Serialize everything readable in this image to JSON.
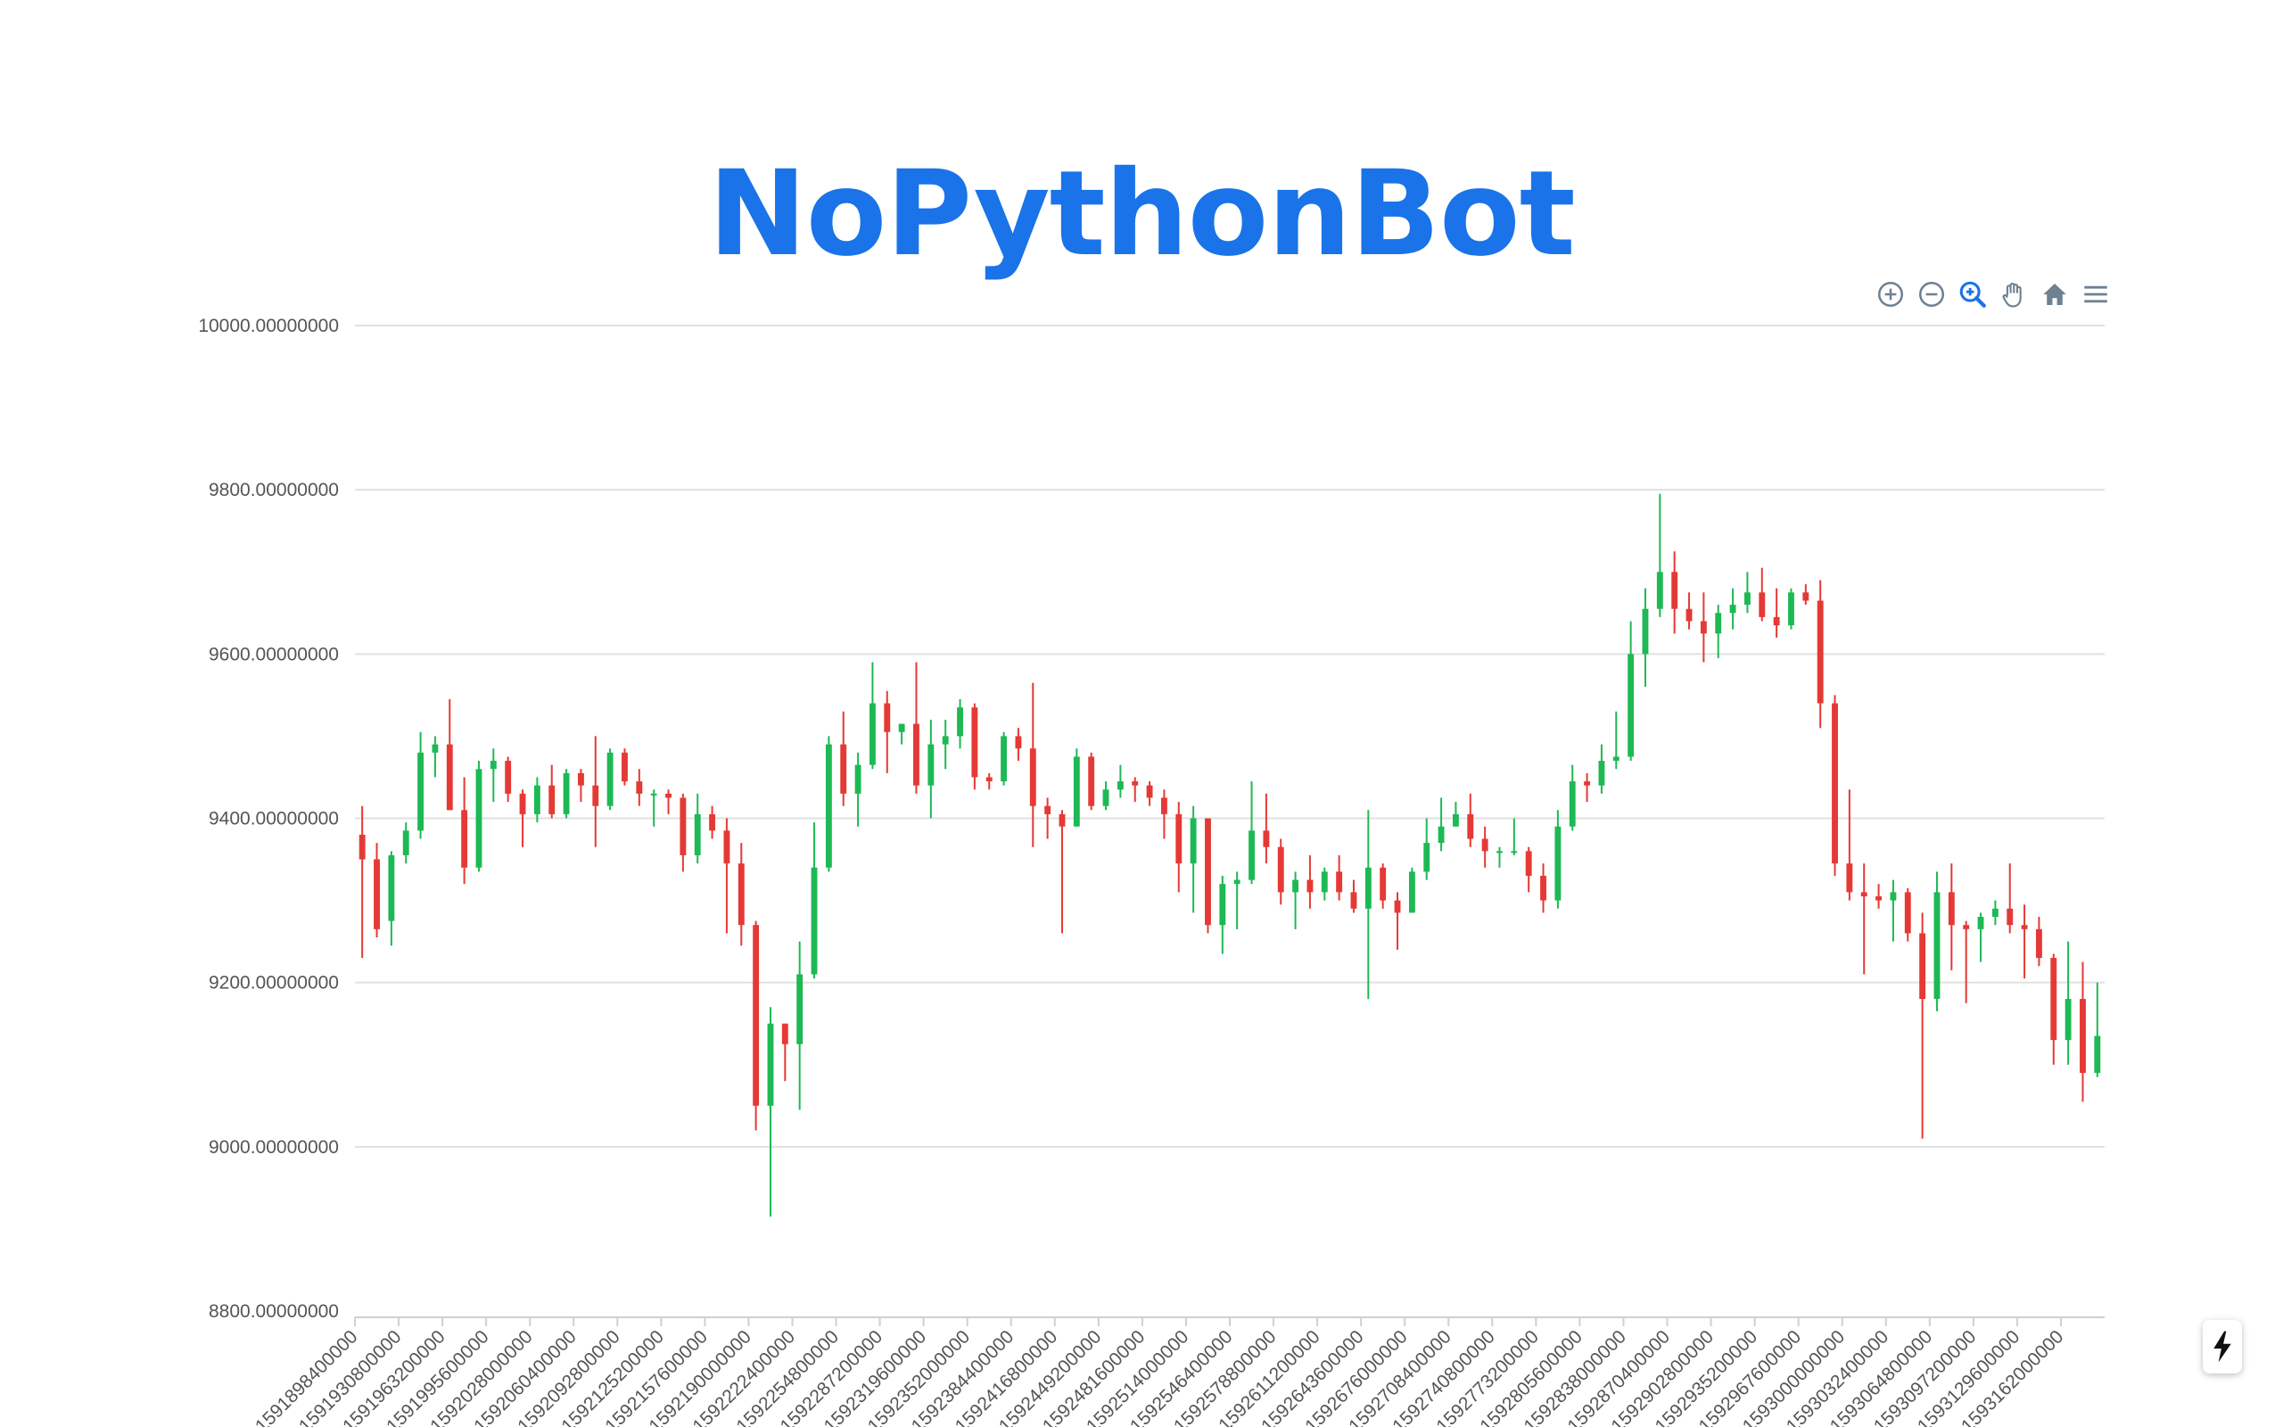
{
  "title": "NoPythonBot",
  "toolbar": {
    "icons": [
      "zoom-in-icon",
      "zoom-out-icon",
      "selection-zoom-icon",
      "pan-icon",
      "home-icon",
      "menu-icon"
    ]
  },
  "colors": {
    "up": "#1db954",
    "down": "#e53935",
    "grid": "#e0e0e0",
    "axis": "#555555",
    "accent": "#1a73e8",
    "toolbar": "#6e8192"
  },
  "chart_data": {
    "type": "candlestick",
    "title": "NoPythonBot",
    "ylim": [
      8800,
      10000
    ],
    "y_ticks": [
      "8800.00000000",
      "9000.00000000",
      "9200.00000000",
      "9400.00000000",
      "9600.00000000",
      "9800.00000000",
      "10000.00000000"
    ],
    "x_ticks": [
      "1591898400000",
      "1591930800000",
      "1591963200000",
      "1591995600000",
      "1592028000000",
      "1592060400000",
      "1592092800000",
      "1592125200000",
      "1592157600000",
      "1592190000000",
      "1592222400000",
      "1592254800000",
      "1592287200000",
      "1592319600000",
      "1592352000000",
      "1592384400000",
      "1592416800000",
      "1592449200000",
      "1592481600000",
      "1592514000000",
      "1592546400000",
      "1592578800000",
      "1592611200000",
      "1592643600000",
      "1592676000000",
      "1592708400000",
      "1592740800000",
      "1592773200000",
      "1592805600000",
      "1592838000000",
      "1592870400000",
      "1592902800000",
      "1592935200000",
      "1592967600000",
      "1593000000000",
      "1593032400000",
      "1593064800000",
      "1593097200000",
      "1593129600000",
      "1593162000000"
    ],
    "x_tick_interval_ms": 32400000,
    "candle_interval_ms": 10800000,
    "candles": [
      [
        9380,
        9415,
        9230,
        9350
      ],
      [
        9350,
        9370,
        9255,
        9265
      ],
      [
        9275,
        9360,
        9245,
        9355
      ],
      [
        9355,
        9395,
        9345,
        9385
      ],
      [
        9385,
        9505,
        9375,
        9480
      ],
      [
        9480,
        9500,
        9450,
        9490
      ],
      [
        9490,
        9545,
        9410,
        9410
      ],
      [
        9410,
        9450,
        9320,
        9340
      ],
      [
        9340,
        9470,
        9335,
        9460
      ],
      [
        9460,
        9485,
        9420,
        9470
      ],
      [
        9470,
        9475,
        9420,
        9430
      ],
      [
        9430,
        9435,
        9365,
        9405
      ],
      [
        9405,
        9450,
        9395,
        9440
      ],
      [
        9440,
        9465,
        9400,
        9405
      ],
      [
        9405,
        9460,
        9400,
        9455
      ],
      [
        9455,
        9460,
        9420,
        9440
      ],
      [
        9440,
        9500,
        9365,
        9415
      ],
      [
        9415,
        9485,
        9410,
        9480
      ],
      [
        9480,
        9485,
        9440,
        9445
      ],
      [
        9445,
        9460,
        9415,
        9430
      ],
      [
        9430,
        9435,
        9390,
        9430
      ],
      [
        9430,
        9435,
        9405,
        9425
      ],
      [
        9425,
        9430,
        9335,
        9355
      ],
      [
        9355,
        9430,
        9345,
        9405
      ],
      [
        9405,
        9415,
        9375,
        9385
      ],
      [
        9385,
        9400,
        9260,
        9345
      ],
      [
        9345,
        9370,
        9245,
        9270
      ],
      [
        9270,
        9275,
        9020,
        9050
      ],
      [
        9050,
        9170,
        8915,
        9150
      ],
      [
        9150,
        9150,
        9080,
        9125
      ],
      [
        9125,
        9250,
        9045,
        9210
      ],
      [
        9210,
        9395,
        9205,
        9340
      ],
      [
        9340,
        9500,
        9335,
        9490
      ],
      [
        9490,
        9530,
        9415,
        9430
      ],
      [
        9430,
        9480,
        9390,
        9465
      ],
      [
        9465,
        9590,
        9460,
        9540
      ],
      [
        9540,
        9555,
        9455,
        9505
      ],
      [
        9505,
        9515,
        9490,
        9515
      ],
      [
        9515,
        9590,
        9430,
        9440
      ],
      [
        9440,
        9520,
        9400,
        9490
      ],
      [
        9490,
        9520,
        9460,
        9500
      ],
      [
        9500,
        9545,
        9485,
        9535
      ],
      [
        9535,
        9540,
        9435,
        9450
      ],
      [
        9450,
        9455,
        9435,
        9445
      ],
      [
        9445,
        9505,
        9440,
        9500
      ],
      [
        9500,
        9510,
        9470,
        9485
      ],
      [
        9485,
        9565,
        9365,
        9415
      ],
      [
        9415,
        9425,
        9375,
        9405
      ],
      [
        9405,
        9410,
        9260,
        9390
      ],
      [
        9390,
        9485,
        9390,
        9475
      ],
      [
        9475,
        9480,
        9410,
        9415
      ],
      [
        9415,
        9445,
        9410,
        9435
      ],
      [
        9435,
        9465,
        9425,
        9445
      ],
      [
        9445,
        9450,
        9420,
        9440
      ],
      [
        9440,
        9445,
        9415,
        9425
      ],
      [
        9425,
        9435,
        9375,
        9405
      ],
      [
        9405,
        9420,
        9310,
        9345
      ],
      [
        9345,
        9415,
        9285,
        9400
      ],
      [
        9400,
        9400,
        9260,
        9270
      ],
      [
        9270,
        9330,
        9235,
        9320
      ],
      [
        9320,
        9335,
        9265,
        9325
      ],
      [
        9325,
        9445,
        9320,
        9385
      ],
      [
        9385,
        9430,
        9345,
        9365
      ],
      [
        9365,
        9375,
        9295,
        9310
      ],
      [
        9310,
        9335,
        9265,
        9325
      ],
      [
        9325,
        9355,
        9290,
        9310
      ],
      [
        9310,
        9340,
        9300,
        9335
      ],
      [
        9335,
        9355,
        9300,
        9310
      ],
      [
        9310,
        9325,
        9285,
        9290
      ],
      [
        9290,
        9410,
        9180,
        9340
      ],
      [
        9340,
        9345,
        9290,
        9300
      ],
      [
        9300,
        9310,
        9240,
        9285
      ],
      [
        9285,
        9340,
        9285,
        9335
      ],
      [
        9335,
        9400,
        9325,
        9370
      ],
      [
        9370,
        9425,
        9360,
        9390
      ],
      [
        9390,
        9420,
        9390,
        9405
      ],
      [
        9405,
        9430,
        9365,
        9375
      ],
      [
        9375,
        9390,
        9340,
        9360
      ],
      [
        9360,
        9365,
        9340,
        9360
      ],
      [
        9360,
        9400,
        9355,
        9360
      ],
      [
        9360,
        9365,
        9310,
        9330
      ],
      [
        9330,
        9345,
        9285,
        9300
      ],
      [
        9300,
        9410,
        9290,
        9390
      ],
      [
        9390,
        9465,
        9385,
        9445
      ],
      [
        9445,
        9455,
        9420,
        9440
      ],
      [
        9440,
        9490,
        9430,
        9470
      ],
      [
        9470,
        9530,
        9460,
        9475
      ],
      [
        9475,
        9640,
        9470,
        9600
      ],
      [
        9600,
        9680,
        9560,
        9655
      ],
      [
        9655,
        9795,
        9645,
        9700
      ],
      [
        9700,
        9725,
        9625,
        9655
      ],
      [
        9655,
        9675,
        9630,
        9640
      ],
      [
        9640,
        9675,
        9590,
        9625
      ],
      [
        9625,
        9660,
        9595,
        9650
      ],
      [
        9650,
        9680,
        9630,
        9660
      ],
      [
        9660,
        9700,
        9650,
        9675
      ],
      [
        9675,
        9705,
        9640,
        9645
      ],
      [
        9645,
        9680,
        9620,
        9635
      ],
      [
        9635,
        9680,
        9630,
        9675
      ],
      [
        9675,
        9685,
        9660,
        9665
      ],
      [
        9665,
        9690,
        9510,
        9540
      ],
      [
        9540,
        9550,
        9330,
        9345
      ],
      [
        9345,
        9435,
        9300,
        9310
      ],
      [
        9310,
        9345,
        9210,
        9305
      ],
      [
        9305,
        9320,
        9290,
        9300
      ],
      [
        9300,
        9325,
        9250,
        9310
      ],
      [
        9310,
        9315,
        9250,
        9260
      ],
      [
        9260,
        9285,
        9010,
        9180
      ],
      [
        9180,
        9335,
        9165,
        9310
      ],
      [
        9310,
        9345,
        9215,
        9270
      ],
      [
        9270,
        9275,
        9175,
        9265
      ],
      [
        9265,
        9285,
        9225,
        9280
      ],
      [
        9280,
        9300,
        9270,
        9290
      ],
      [
        9290,
        9345,
        9260,
        9270
      ],
      [
        9270,
        9295,
        9205,
        9265
      ],
      [
        9265,
        9280,
        9220,
        9230
      ],
      [
        9230,
        9235,
        9100,
        9130
      ],
      [
        9130,
        9250,
        9100,
        9180
      ],
      [
        9180,
        9225,
        9055,
        9090
      ],
      [
        9090,
        9200,
        9085,
        9135
      ]
    ]
  }
}
